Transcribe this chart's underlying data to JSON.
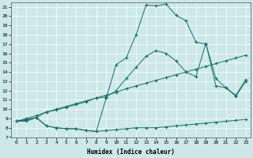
{
  "title": "",
  "xlabel": "Humidex (Indice chaleur)",
  "bg_color": "#cce8e8",
  "line_color": "#1a6e6a",
  "grid_color": "#ffffff",
  "xlim": [
    -0.5,
    23.5
  ],
  "ylim": [
    7,
    21.5
  ],
  "xticks": [
    0,
    1,
    2,
    3,
    4,
    5,
    6,
    7,
    8,
    9,
    10,
    11,
    12,
    13,
    14,
    15,
    16,
    17,
    18,
    19,
    20,
    21,
    22,
    23
  ],
  "yticks": [
    7,
    8,
    9,
    10,
    11,
    12,
    13,
    14,
    15,
    16,
    17,
    18,
    19,
    20,
    21
  ],
  "line1_x": [
    0,
    1,
    2,
    3,
    4,
    5,
    6,
    7,
    8,
    9,
    10,
    11,
    12,
    13,
    14,
    15,
    16,
    17,
    18,
    19,
    20,
    21,
    22,
    23
  ],
  "line1_y": [
    8.7,
    8.8,
    9.1,
    8.2,
    8.0,
    7.9,
    7.9,
    7.7,
    7.6,
    7.7,
    7.8,
    7.9,
    8.0,
    8.0,
    8.0,
    8.1,
    8.2,
    8.3,
    8.4,
    8.5,
    8.6,
    8.7,
    8.8,
    8.9
  ],
  "line2_x": [
    0,
    1,
    2,
    3,
    4,
    5,
    6,
    7,
    8,
    9,
    10,
    11,
    12,
    13,
    14,
    15,
    16,
    17,
    18,
    19,
    20,
    21,
    22,
    23
  ],
  "line2_y": [
    8.7,
    9.0,
    9.3,
    9.7,
    10.0,
    10.3,
    10.6,
    10.9,
    11.2,
    11.5,
    11.8,
    12.2,
    12.5,
    12.8,
    13.1,
    13.4,
    13.7,
    14.0,
    14.3,
    14.6,
    14.9,
    15.2,
    15.5,
    15.8
  ],
  "line3_x": [
    0,
    1,
    2,
    3,
    4,
    5,
    6,
    7,
    8,
    9,
    10,
    11,
    12,
    13,
    14,
    15,
    16,
    17,
    18,
    19,
    20,
    21,
    22,
    23
  ],
  "line3_y": [
    8.7,
    8.7,
    9.1,
    8.2,
    8.0,
    7.9,
    7.9,
    7.7,
    7.6,
    11.2,
    14.8,
    15.5,
    18.0,
    21.2,
    21.1,
    21.3,
    20.1,
    19.5,
    17.2,
    17.0,
    13.3,
    12.3,
    11.4,
    13.0
  ],
  "line4_x": [
    0,
    2,
    3,
    4,
    5,
    6,
    7,
    8,
    9,
    10,
    11,
    12,
    13,
    14,
    15,
    16,
    17,
    18,
    19,
    20,
    21,
    22,
    23
  ],
  "line4_y": [
    8.7,
    9.1,
    9.7,
    9.9,
    10.2,
    10.5,
    10.8,
    11.2,
    11.3,
    12.0,
    13.3,
    14.5,
    15.7,
    16.3,
    16.0,
    15.2,
    14.0,
    13.5,
    17.1,
    12.5,
    12.3,
    11.5,
    13.2
  ]
}
